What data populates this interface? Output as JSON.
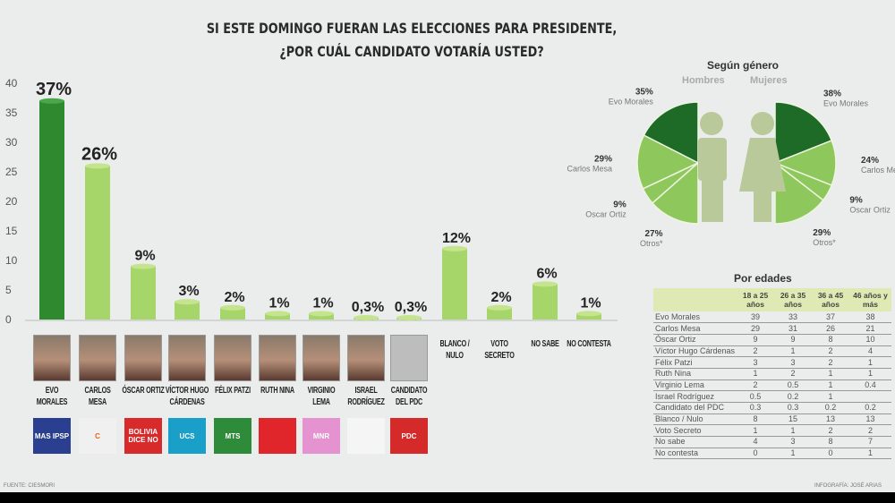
{
  "title": {
    "line1": "SI ESTE DOMINGO FUERAN LAS ELECCIONES PARA PRESIDENTE,",
    "line2": "¿POR CUÁL CANDIDATO VOTARÍA USTED?"
  },
  "chart_data": [
    {
      "type": "bar",
      "title": "",
      "ylim": [
        0,
        40
      ],
      "yticks": [
        0,
        5,
        10,
        15,
        20,
        25,
        30,
        35,
        40
      ],
      "categories": [
        "EVO MORALES",
        "CARLOS MESA",
        "ÓSCAR ORTIZ",
        "VÍCTOR HUGO CÁRDENAS",
        "FÉLIX PATZI",
        "RUTH NINA",
        "VIRGINIO LEMA",
        "ISRAEL RODRÍGUEZ",
        "CANDIDATO DEL PDC",
        "BLANCO / NULO",
        "VOTO SECRETO",
        "NO SABE",
        "NO CONTESTA"
      ],
      "values": [
        37,
        26,
        9,
        3,
        2,
        1,
        1,
        0.3,
        0.3,
        12,
        2,
        6,
        1
      ],
      "labels": [
        "37%",
        "26%",
        "9%",
        "3%",
        "2%",
        "1%",
        "1%",
        "0,3%",
        "0,3%",
        "12%",
        "2%",
        "6%",
        "1%"
      ]
    },
    {
      "type": "pie",
      "title": "Según género",
      "series": [
        {
          "name": "Hombres",
          "slices": [
            {
              "label": "Evo Morales",
              "value": 35,
              "text": "35%"
            },
            {
              "label": "Carlos Mesa",
              "value": 29,
              "text": "29%"
            },
            {
              "label": "Oscar Ortiz",
              "value": 9,
              "text": "9%"
            },
            {
              "label": "Otros*",
              "value": 27,
              "text": "27%"
            }
          ]
        },
        {
          "name": "Mujeres",
          "slices": [
            {
              "label": "Evo Morales",
              "value": 38,
              "text": "38%"
            },
            {
              "label": "Carlos Mesa",
              "value": 24,
              "text": "24%"
            },
            {
              "label": "Oscar Ortiz",
              "value": 9,
              "text": "9%"
            },
            {
              "label": "Otros*",
              "value": 29,
              "text": "29%"
            }
          ]
        }
      ]
    },
    {
      "type": "table",
      "title": "Por edades",
      "columns": [
        "",
        "18 a 25 años",
        "26 a 35 años",
        "36 a 45 años",
        "46 años y más"
      ],
      "rows": [
        [
          "Evo Morales",
          "39",
          "33",
          "37",
          "38"
        ],
        [
          "Carlos Mesa",
          "29",
          "31",
          "26",
          "21"
        ],
        [
          "Óscar Ortiz",
          "9",
          "9",
          "8",
          "10"
        ],
        [
          "Víctor Hugo Cárdenas",
          "2",
          "1",
          "2",
          "4"
        ],
        [
          "Félix Patzi",
          "3",
          "3",
          "2",
          "1"
        ],
        [
          "Ruth Nina",
          "1",
          "2",
          "1",
          "1"
        ],
        [
          "Virginio Lema",
          "2",
          "0.5",
          "1",
          "0.4"
        ],
        [
          "Israel Rodríguez",
          "0.5",
          "0.2",
          "1",
          ""
        ],
        [
          "Candidato del PDC",
          "0.3",
          "0.3",
          "0.2",
          "0.2"
        ],
        [
          "Blanco / Nulo",
          "8",
          "15",
          "13",
          "13"
        ],
        [
          "Voto Secreto",
          "1",
          "1",
          "2",
          "2"
        ],
        [
          "No sabe",
          "4",
          "3",
          "8",
          "7"
        ],
        [
          "No contesta",
          "0",
          "1",
          "0",
          "1"
        ]
      ]
    }
  ],
  "logos": [
    "MAS IPSP",
    "C",
    "BOLIVIA DICE NO",
    "UCS",
    "MTS",
    "",
    "MNR",
    "",
    "PDC"
  ],
  "logo_colors": [
    "#2a3f8f",
    "#f0f0f0",
    "#d8292b",
    "#1aa0c8",
    "#2e8b3a",
    "#e0262a",
    "#e592d0",
    "#f5f5f5",
    "#d42a2a"
  ],
  "logo_sub": {
    "cc": "COMUNIDAD CIUDADANA"
  },
  "footer": {
    "source": "FUENTE: CIESMORI",
    "credit": "INFOGRAFÍA: JOSÉ ARIAS"
  },
  "colors": {
    "dark": "#1e6b28",
    "light": "#8ec85c",
    "bar_dark": "#2f8a2f",
    "bar_light": "#a6d66a"
  }
}
